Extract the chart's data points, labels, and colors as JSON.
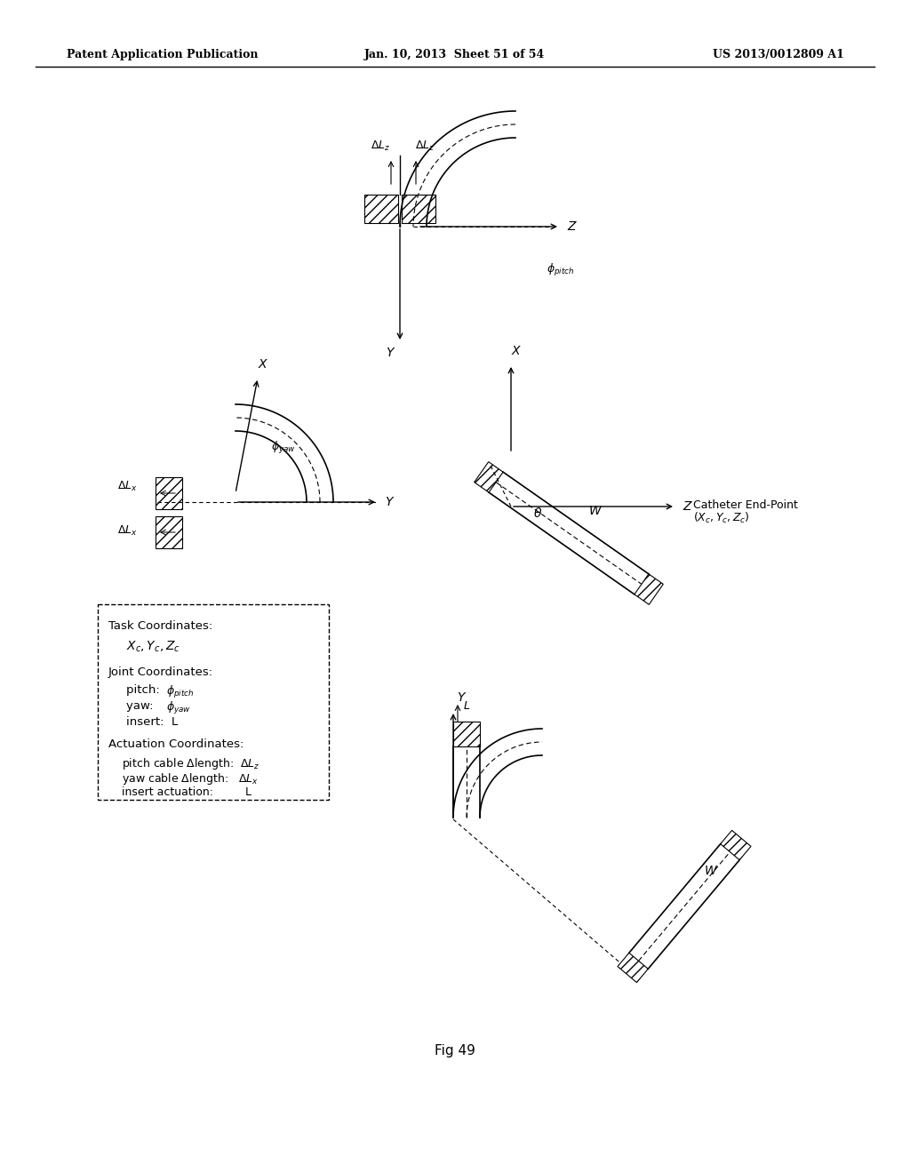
{
  "title_left": "Patent Application Publication",
  "title_center": "Jan. 10, 2013  Sheet 51 of 54",
  "title_right": "US 2013/0012809 A1",
  "fig_label": "Fig 49",
  "background_color": "#ffffff",
  "text_color": "#000000",
  "box_text": [
    "Task Coordinates:",
    "Xₙ, Yₙ, Zₙ",
    "",
    "Joint Coordinates:",
    "    pitch:    φpitch",
    "    yaw:      φyaw",
    "    insert:   L",
    "",
    "Actuation Coordinates:",
    "    pitch cable Δlength:   ΔL₄",
    "    yaw cable Δlength:    ΔLₓ",
    "    insert actuation:      L"
  ]
}
